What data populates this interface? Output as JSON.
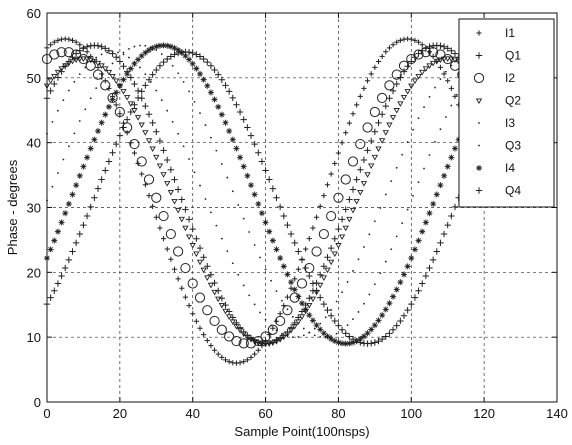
{
  "chart_data": {
    "type": "scatter",
    "xlabel": "Sample Point(100nsps)",
    "ylabel": "Phase - degrees",
    "xlim": [
      0,
      140
    ],
    "ylim": [
      0,
      60
    ],
    "xticks": [
      "0",
      "20",
      "40",
      "60",
      "80",
      "100",
      "120",
      "140"
    ],
    "yticks": [
      "0",
      "10",
      "20",
      "30",
      "40",
      "50",
      "60"
    ],
    "grid": true,
    "legend_position": "top-right",
    "series": [
      {
        "name": "I1",
        "marker": "plus-small",
        "trough_x": 52,
        "peak_x": 5,
        "min": 6,
        "max": 56
      },
      {
        "name": "Q1",
        "marker": "plus",
        "trough_x": 60,
        "peak_x": 13,
        "min": 9,
        "max": 55
      },
      {
        "name": "I2",
        "marker": "circle",
        "trough_x": 55,
        "peak_x": 105,
        "min": 9,
        "max": 54
      },
      {
        "name": "Q2",
        "marker": "triangle",
        "trough_x": 60,
        "peak_x": 110,
        "min": 9,
        "max": 53
      },
      {
        "name": "I3",
        "marker": "dot",
        "trough_x": 68,
        "peak_x": 118,
        "min": 10,
        "max": 54
      },
      {
        "name": "Q3",
        "marker": "dot",
        "trough_x": 76,
        "peak_x": 126,
        "min": 10,
        "max": 55
      },
      {
        "name": "I4",
        "marker": "star",
        "trough_x": 82,
        "peak_x": 32,
        "min": 9,
        "max": 55
      },
      {
        "name": "Q4",
        "marker": "plus",
        "trough_x": 88,
        "peak_x": 38,
        "min": 9,
        "max": 54
      }
    ]
  }
}
